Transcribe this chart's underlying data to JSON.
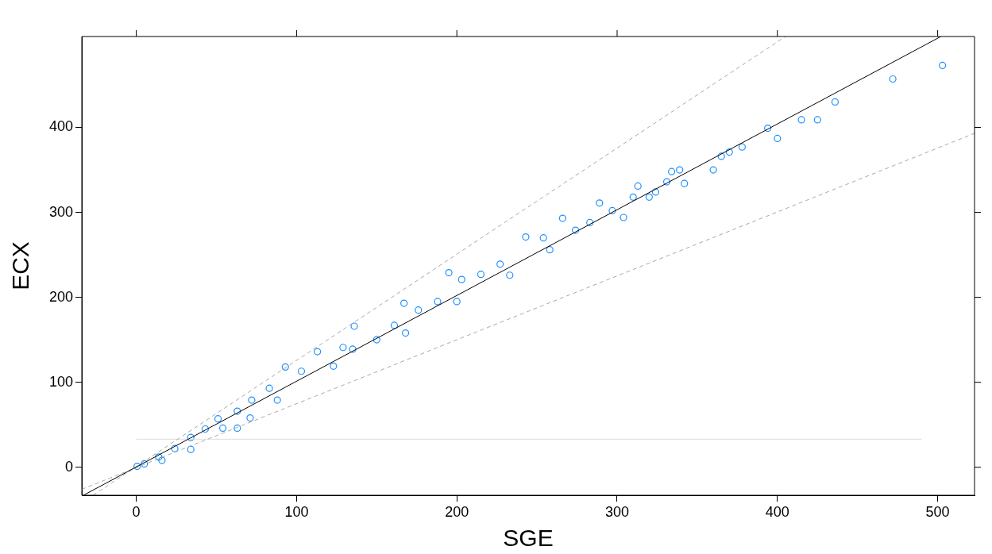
{
  "chart_data": {
    "type": "scatter",
    "xlabel": "SGE",
    "ylabel": "ECX",
    "xlim": [
      -34,
      523
    ],
    "ylim": [
      -33,
      507
    ],
    "xticks": [
      0,
      100,
      200,
      300,
      400,
      500
    ],
    "yticks": [
      0,
      100,
      200,
      300,
      400
    ],
    "grid": false,
    "legend": false,
    "marker": "circle",
    "series": [
      {
        "color": "#1e90ff",
        "x": [
          503,
          472,
          436,
          425,
          415,
          400,
          394,
          378,
          370,
          365,
          360,
          342,
          339,
          334,
          331,
          324,
          320,
          313,
          310,
          304,
          297,
          289,
          283,
          274,
          266,
          258,
          254,
          243,
          233,
          227,
          215,
          203,
          200,
          195,
          188,
          176,
          167,
          161,
          150,
          136,
          129,
          113,
          103,
          93,
          83,
          72,
          63,
          51,
          43,
          34,
          24,
          14,
          5,
          0.5,
          88,
          123,
          168,
          135,
          71,
          54,
          34,
          16,
          63
        ],
        "values": [
          473,
          457,
          430,
          409,
          409,
          387,
          399,
          377,
          371,
          366,
          350,
          334,
          350,
          348,
          336,
          324,
          318,
          331,
          318,
          294,
          302,
          311,
          288,
          279,
          293,
          256,
          270,
          271,
          226,
          239,
          227,
          221,
          195,
          229,
          195,
          185,
          193,
          167,
          150,
          166,
          141,
          136,
          113,
          118,
          93,
          79,
          66,
          57,
          45,
          35,
          22,
          12,
          4,
          1,
          79,
          119,
          158,
          139,
          58,
          46,
          21,
          8,
          46
        ]
      },
      {
        "type": "line",
        "marker": "none",
        "color": "#000000",
        "x": [
          -33,
          502
        ],
        "values": [
          -33,
          507
        ]
      },
      {
        "type": "line",
        "marker": "none",
        "color": "#aaaaaa",
        "line_style": "dashed",
        "x": [
          -27,
          405
        ],
        "values": [
          -33,
          507
        ]
      },
      {
        "type": "line",
        "marker": "none",
        "color": "#aaaaaa",
        "line_style": "dashed",
        "x": [
          -34,
          523
        ],
        "values": [
          -26,
          393
        ]
      },
      {
        "type": "line",
        "marker": "none",
        "color": "#dddddd",
        "x": [
          0,
          490
        ],
        "values": [
          33,
          33
        ]
      }
    ]
  }
}
